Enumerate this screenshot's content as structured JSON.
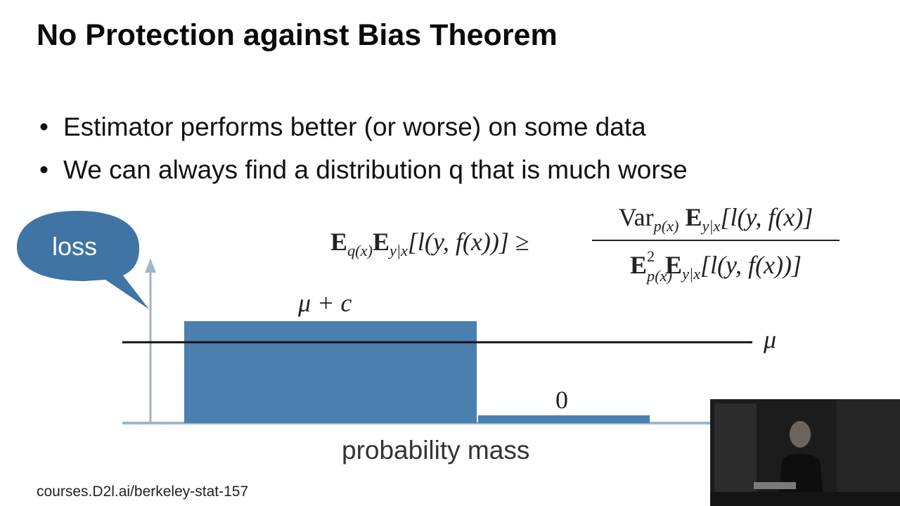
{
  "slide": {
    "title": "No Protection against Bias Theorem",
    "bullets": [
      "Estimator performs better (or worse) on some data",
      "We can always find a distribution q that is much worse"
    ],
    "formula": {
      "lhs_E1": "E",
      "lhs_E1_sub": "q(x)",
      "lhs_E2": "E",
      "lhs_E2_sub": "y|x",
      "lhs_body": "[l(y, f(x))]",
      "relation": "≥",
      "num_var": "Var",
      "num_var_sub": "p(x)",
      "num_E": "E",
      "num_E_sub": "y|x",
      "num_body": "[l(y, f(x)]",
      "den_E1": "E",
      "den_E1_sup": "2",
      "den_E1_sub": "p(x)",
      "den_E2": "E",
      "den_E2_sub": "y|x",
      "den_body": "[l(y, f(x))]"
    },
    "diagram": {
      "bubble_label": "loss",
      "bar_label": "μ + c",
      "mean_label": "μ",
      "zero_label": "0",
      "x_axis_label": "probability mass",
      "colors": {
        "bar": "#4a7fb0",
        "bubble": "#3f74a5",
        "axis": "#9eb5c8",
        "mean_line": "#111111"
      }
    },
    "footer": "courses.D2l.ai/berkeley-stat-157"
  }
}
